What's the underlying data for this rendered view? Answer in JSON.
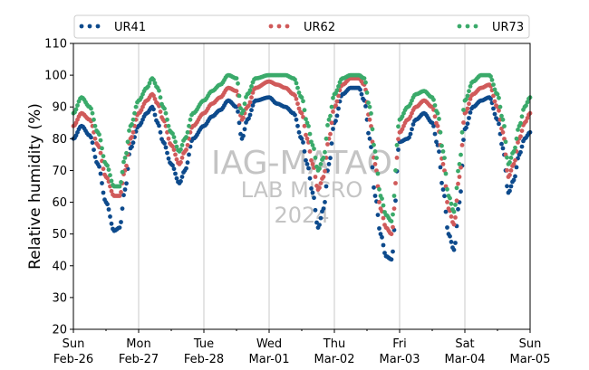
{
  "chart_data": {
    "type": "scatter",
    "ylabel": "Relative humidity (%)",
    "xlabel": "",
    "ylim": [
      20,
      110
    ],
    "yticks": [
      20,
      30,
      40,
      50,
      60,
      70,
      80,
      90,
      100,
      110
    ],
    "xlim": [
      "2023-02-26",
      "2023-03-05"
    ],
    "xtick_labels": [
      [
        "Sun",
        "Feb-26"
      ],
      [
        "Mon",
        "Feb-27"
      ],
      [
        "Tue",
        "Feb-28"
      ],
      [
        "Wed",
        "Mar-01"
      ],
      [
        "Thu",
        "Mar-02"
      ],
      [
        "Fri",
        "Mar-03"
      ],
      [
        "Sat",
        "Mar-04"
      ],
      [
        "Sun",
        "Mar-05"
      ]
    ],
    "grid": "vertical",
    "legend": "top",
    "watermark": [
      "IAG-MATAO",
      "LAB MICRO",
      "2024"
    ],
    "series": [
      {
        "name": "UR41",
        "color": "#0d4a8c",
        "points": [
          [
            "2023-02-26T00:00",
            80
          ],
          [
            "2023-02-26T03:00",
            84
          ],
          [
            "2023-02-26T06:00",
            81
          ],
          [
            "2023-02-26T09:00",
            72
          ],
          [
            "2023-02-26T12:00",
            60
          ],
          [
            "2023-02-26T15:00",
            51
          ],
          [
            "2023-02-26T17:00",
            52
          ],
          [
            "2023-02-26T19:00",
            64
          ],
          [
            "2023-02-26T21:00",
            77
          ],
          [
            "2023-02-27T00:00",
            84
          ],
          [
            "2023-02-27T03:00",
            88
          ],
          [
            "2023-02-27T05:00",
            90
          ],
          [
            "2023-02-27T07:00",
            85
          ],
          [
            "2023-02-27T09:00",
            79
          ],
          [
            "2023-02-27T12:00",
            72
          ],
          [
            "2023-02-27T15:00",
            66
          ],
          [
            "2023-02-27T17:00",
            70
          ],
          [
            "2023-02-27T20:00",
            80
          ],
          [
            "2023-02-28T00:00",
            84
          ],
          [
            "2023-02-28T03:00",
            87
          ],
          [
            "2023-02-28T06:00",
            89
          ],
          [
            "2023-02-28T09:00",
            92
          ],
          [
            "2023-02-28T12:00",
            90
          ],
          [
            "2023-02-28T14:00",
            80
          ],
          [
            "2023-02-28T16:00",
            86
          ],
          [
            "2023-02-28T19:00",
            92
          ],
          [
            "2023-03-01T00:00",
            93
          ],
          [
            "2023-03-01T03:00",
            91
          ],
          [
            "2023-03-01T06:00",
            90
          ],
          [
            "2023-03-01T09:00",
            88
          ],
          [
            "2023-03-01T12:00",
            80
          ],
          [
            "2023-03-01T14:00",
            72
          ],
          [
            "2023-03-01T16:00",
            63
          ],
          [
            "2023-03-01T18:00",
            52
          ],
          [
            "2023-03-01T20:00",
            58
          ],
          [
            "2023-03-01T22:00",
            72
          ],
          [
            "2023-03-02T00:00",
            85
          ],
          [
            "2023-03-02T03:00",
            94
          ],
          [
            "2023-03-02T06:00",
            96
          ],
          [
            "2023-03-02T09:00",
            96
          ],
          [
            "2023-03-02T11:00",
            92
          ],
          [
            "2023-03-02T13:00",
            80
          ],
          [
            "2023-03-02T15:00",
            62
          ],
          [
            "2023-03-02T17:00",
            50
          ],
          [
            "2023-03-02T19:00",
            43
          ],
          [
            "2023-03-02T21:00",
            42
          ],
          [
            "2023-03-03T00:00",
            79
          ],
          [
            "2023-03-03T03:00",
            80
          ],
          [
            "2023-03-03T06:00",
            86
          ],
          [
            "2023-03-03T09:00",
            88
          ],
          [
            "2023-03-03T12:00",
            85
          ],
          [
            "2023-03-03T14:00",
            78
          ],
          [
            "2023-03-03T16:00",
            64
          ],
          [
            "2023-03-03T18:00",
            50
          ],
          [
            "2023-03-03T20:00",
            45
          ],
          [
            "2023-03-03T22:00",
            60
          ],
          [
            "2023-03-04T00:00",
            83
          ],
          [
            "2023-03-04T03:00",
            90
          ],
          [
            "2023-03-04T06:00",
            92
          ],
          [
            "2023-03-04T09:00",
            93
          ],
          [
            "2023-03-04T12:00",
            86
          ],
          [
            "2023-03-04T14:00",
            77
          ],
          [
            "2023-03-04T16:00",
            63
          ],
          [
            "2023-03-04T18:00",
            67
          ],
          [
            "2023-03-04T20:00",
            75
          ],
          [
            "2023-03-04T22:00",
            80
          ],
          [
            "2023-03-05T00:00",
            82
          ]
        ]
      },
      {
        "name": "UR62",
        "color": "#d05a5a",
        "points": [
          [
            "2023-02-26T00:00",
            84
          ],
          [
            "2023-02-26T03:00",
            88
          ],
          [
            "2023-02-26T06:00",
            86
          ],
          [
            "2023-02-26T09:00",
            78
          ],
          [
            "2023-02-26T12:00",
            68
          ],
          [
            "2023-02-26T15:00",
            62
          ],
          [
            "2023-02-26T17:00",
            62
          ],
          [
            "2023-02-26T19:00",
            70
          ],
          [
            "2023-02-26T21:00",
            80
          ],
          [
            "2023-02-27T00:00",
            88
          ],
          [
            "2023-02-27T03:00",
            92
          ],
          [
            "2023-02-27T05:00",
            94
          ],
          [
            "2023-02-27T07:00",
            91
          ],
          [
            "2023-02-27T09:00",
            86
          ],
          [
            "2023-02-27T12:00",
            78
          ],
          [
            "2023-02-27T15:00",
            72
          ],
          [
            "2023-02-27T17:00",
            76
          ],
          [
            "2023-02-27T20:00",
            84
          ],
          [
            "2023-02-28T00:00",
            88
          ],
          [
            "2023-02-28T03:00",
            91
          ],
          [
            "2023-02-28T06:00",
            93
          ],
          [
            "2023-02-28T09:00",
            96
          ],
          [
            "2023-02-28T12:00",
            95
          ],
          [
            "2023-02-28T14:00",
            86
          ],
          [
            "2023-02-28T16:00",
            90
          ],
          [
            "2023-02-28T19:00",
            96
          ],
          [
            "2023-03-01T00:00",
            98
          ],
          [
            "2023-03-01T03:00",
            97
          ],
          [
            "2023-03-01T06:00",
            96
          ],
          [
            "2023-03-01T09:00",
            94
          ],
          [
            "2023-03-01T12:00",
            88
          ],
          [
            "2023-03-01T14:00",
            80
          ],
          [
            "2023-03-01T16:00",
            72
          ],
          [
            "2023-03-01T18:00",
            64
          ],
          [
            "2023-03-01T20:00",
            68
          ],
          [
            "2023-03-01T22:00",
            80
          ],
          [
            "2023-03-02T00:00",
            90
          ],
          [
            "2023-03-02T03:00",
            97
          ],
          [
            "2023-03-02T06:00",
            99
          ],
          [
            "2023-03-02T09:00",
            99
          ],
          [
            "2023-03-02T11:00",
            97
          ],
          [
            "2023-03-02T13:00",
            86
          ],
          [
            "2023-03-02T15:00",
            72
          ],
          [
            "2023-03-02T17:00",
            58
          ],
          [
            "2023-03-02T19:00",
            52
          ],
          [
            "2023-03-02T21:00",
            50
          ],
          [
            "2023-03-03T00:00",
            82
          ],
          [
            "2023-03-03T03:00",
            86
          ],
          [
            "2023-03-03T06:00",
            90
          ],
          [
            "2023-03-03T09:00",
            92
          ],
          [
            "2023-03-03T12:00",
            90
          ],
          [
            "2023-03-03T14:00",
            84
          ],
          [
            "2023-03-03T16:00",
            72
          ],
          [
            "2023-03-03T18:00",
            58
          ],
          [
            "2023-03-03T20:00",
            53
          ],
          [
            "2023-03-03T22:00",
            68
          ],
          [
            "2023-03-04T00:00",
            88
          ],
          [
            "2023-03-04T03:00",
            94
          ],
          [
            "2023-03-04T06:00",
            96
          ],
          [
            "2023-03-04T09:00",
            97
          ],
          [
            "2023-03-04T12:00",
            90
          ],
          [
            "2023-03-04T14:00",
            82
          ],
          [
            "2023-03-04T16:00",
            68
          ],
          [
            "2023-03-04T18:00",
            72
          ],
          [
            "2023-03-04T20:00",
            80
          ],
          [
            "2023-03-04T22:00",
            85
          ],
          [
            "2023-03-05T00:00",
            88
          ]
        ]
      },
      {
        "name": "UR73",
        "color": "#3aaa6a",
        "points": [
          [
            "2023-02-26T00:00",
            88
          ],
          [
            "2023-02-26T03:00",
            93
          ],
          [
            "2023-02-26T06:00",
            90
          ],
          [
            "2023-02-26T09:00",
            82
          ],
          [
            "2023-02-26T12:00",
            72
          ],
          [
            "2023-02-26T15:00",
            65
          ],
          [
            "2023-02-26T17:00",
            65
          ],
          [
            "2023-02-26T19:00",
            74
          ],
          [
            "2023-02-26T21:00",
            84
          ],
          [
            "2023-02-27T00:00",
            92
          ],
          [
            "2023-02-27T03:00",
            96
          ],
          [
            "2023-02-27T05:00",
            99
          ],
          [
            "2023-02-27T07:00",
            96
          ],
          [
            "2023-02-27T09:00",
            90
          ],
          [
            "2023-02-27T12:00",
            82
          ],
          [
            "2023-02-27T15:00",
            76
          ],
          [
            "2023-02-27T17:00",
            80
          ],
          [
            "2023-02-27T20:00",
            88
          ],
          [
            "2023-02-28T00:00",
            92
          ],
          [
            "2023-02-28T03:00",
            95
          ],
          [
            "2023-02-28T06:00",
            97
          ],
          [
            "2023-02-28T09:00",
            100
          ],
          [
            "2023-02-28T12:00",
            99
          ],
          [
            "2023-02-28T14:00",
            88
          ],
          [
            "2023-02-28T16:00",
            94
          ],
          [
            "2023-02-28T19:00",
            99
          ],
          [
            "2023-03-01T00:00",
            100
          ],
          [
            "2023-03-01T03:00",
            100
          ],
          [
            "2023-03-01T06:00",
            100
          ],
          [
            "2023-03-01T09:00",
            99
          ],
          [
            "2023-03-01T12:00",
            93
          ],
          [
            "2023-03-01T14:00",
            85
          ],
          [
            "2023-03-01T16:00",
            78
          ],
          [
            "2023-03-01T18:00",
            70
          ],
          [
            "2023-03-01T20:00",
            74
          ],
          [
            "2023-03-01T22:00",
            86
          ],
          [
            "2023-03-02T00:00",
            94
          ],
          [
            "2023-03-02T03:00",
            99
          ],
          [
            "2023-03-02T06:00",
            100
          ],
          [
            "2023-03-02T09:00",
            100
          ],
          [
            "2023-03-02T11:00",
            99
          ],
          [
            "2023-03-02T13:00",
            90
          ],
          [
            "2023-03-02T15:00",
            76
          ],
          [
            "2023-03-02T17:00",
            62
          ],
          [
            "2023-03-02T19:00",
            56
          ],
          [
            "2023-03-02T21:00",
            54
          ],
          [
            "2023-03-03T00:00",
            86
          ],
          [
            "2023-03-03T03:00",
            90
          ],
          [
            "2023-03-03T06:00",
            94
          ],
          [
            "2023-03-03T09:00",
            95
          ],
          [
            "2023-03-03T12:00",
            93
          ],
          [
            "2023-03-03T14:00",
            88
          ],
          [
            "2023-03-03T16:00",
            76
          ],
          [
            "2023-03-03T18:00",
            62
          ],
          [
            "2023-03-03T20:00",
            57
          ],
          [
            "2023-03-03T22:00",
            72
          ],
          [
            "2023-03-04T00:00",
            92
          ],
          [
            "2023-03-04T03:00",
            98
          ],
          [
            "2023-03-04T06:00",
            100
          ],
          [
            "2023-03-04T09:00",
            100
          ],
          [
            "2023-03-04T12:00",
            94
          ],
          [
            "2023-03-04T14:00",
            86
          ],
          [
            "2023-03-04T16:00",
            72
          ],
          [
            "2023-03-04T18:00",
            76
          ],
          [
            "2023-03-04T20:00",
            84
          ],
          [
            "2023-03-04T22:00",
            90
          ],
          [
            "2023-03-05T00:00",
            93
          ]
        ]
      }
    ]
  }
}
